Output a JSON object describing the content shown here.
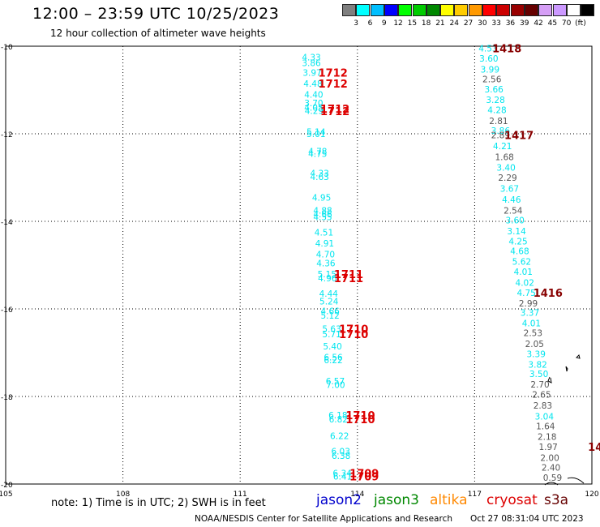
{
  "header": {
    "title": "12:00 – 23:59 UTC 10/25/2023",
    "subtitle": "12 hour collection of altimeter wave heights"
  },
  "legend": {
    "colors": [
      "#7f7f7f",
      "#00ffff",
      "#00bfff",
      "#0000ff",
      "#00ff00",
      "#00cc00",
      "#008800",
      "#ffff00",
      "#ffcc00",
      "#ff9900",
      "#ff0000",
      "#cc0000",
      "#990000",
      "#660000",
      "#d59ef5",
      "#cc99ff",
      "#ffffff",
      "#000000"
    ],
    "labels": [
      "3",
      "6",
      "9",
      "12",
      "15",
      "18",
      "21",
      "24",
      "27",
      "30",
      "33",
      "36",
      "39",
      "42",
      "45",
      "70",
      "(ft)"
    ]
  },
  "map": {
    "lon_ticks": [
      "105",
      "108",
      "111",
      "114",
      "117",
      "120"
    ],
    "lat_ticks": [
      "-10",
      "-12",
      "-14",
      "-16",
      "-18",
      "-20"
    ],
    "track1": [
      {
        "v": "4.33",
        "lat": -10.25,
        "lon": 112.58,
        "c": "#00e5ee"
      },
      {
        "v": "3.86",
        "lat": -10.38,
        "lon": 112.58,
        "c": "#00e5ee"
      },
      {
        "v": "3.97",
        "lat": -10.6,
        "lon": 112.6,
        "c": "#00e5ee"
      },
      {
        "v": "4.48",
        "lat": -10.85,
        "lon": 112.62,
        "c": "#00e5ee"
      },
      {
        "v": "4.40",
        "lat": -11.1,
        "lon": 112.64,
        "c": "#00e5ee"
      },
      {
        "v": "3.70",
        "lat": -11.3,
        "lon": 112.64,
        "c": "#00e5ee"
      },
      {
        "v": "4.05",
        "lat": -11.4,
        "lon": 112.64,
        "c": "#00e5ee"
      },
      {
        "v": "4.29",
        "lat": -11.47,
        "lon": 112.65,
        "c": "#00e5ee"
      },
      {
        "v": "5.14",
        "lat": -11.95,
        "lon": 112.7,
        "c": "#00e5ee"
      },
      {
        "v": "5.01",
        "lat": -12.0,
        "lon": 112.7,
        "c": "#00e5ee"
      },
      {
        "v": "4.78",
        "lat": -12.4,
        "lon": 112.74,
        "c": "#00e5ee"
      },
      {
        "v": "4.75",
        "lat": -12.45,
        "lon": 112.74,
        "c": "#00e5ee"
      },
      {
        "v": "4.33",
        "lat": -12.9,
        "lon": 112.79,
        "c": "#00e5ee"
      },
      {
        "v": "4.63",
        "lat": -12.98,
        "lon": 112.79,
        "c": "#00e5ee"
      },
      {
        "v": "4.95",
        "lat": -13.45,
        "lon": 112.84,
        "c": "#00e5ee"
      },
      {
        "v": "4.88",
        "lat": -13.75,
        "lon": 112.87,
        "c": "#00e5ee"
      },
      {
        "v": "4.66",
        "lat": -13.83,
        "lon": 112.87,
        "c": "#00e5ee"
      },
      {
        "v": "4.55",
        "lat": -13.9,
        "lon": 112.87,
        "c": "#00e5ee"
      },
      {
        "v": "4.51",
        "lat": -14.25,
        "lon": 112.9,
        "c": "#00e5ee"
      },
      {
        "v": "4.91",
        "lat": -14.5,
        "lon": 112.92,
        "c": "#00e5ee"
      },
      {
        "v": "4.70",
        "lat": -14.75,
        "lon": 112.94,
        "c": "#00e5ee"
      },
      {
        "v": "4.36",
        "lat": -14.95,
        "lon": 112.95,
        "c": "#00e5ee"
      },
      {
        "v": "5.15",
        "lat": -15.2,
        "lon": 112.98,
        "c": "#00e5ee"
      },
      {
        "v": "4.96",
        "lat": -15.3,
        "lon": 112.99,
        "c": "#00e5ee"
      },
      {
        "v": "4.44",
        "lat": -15.65,
        "lon": 113.02,
        "c": "#00e5ee"
      },
      {
        "v": "5.24",
        "lat": -15.82,
        "lon": 113.03,
        "c": "#00e5ee"
      },
      {
        "v": "4.66",
        "lat": -16.05,
        "lon": 113.06,
        "c": "#00e5ee"
      },
      {
        "v": "5.12",
        "lat": -16.15,
        "lon": 113.06,
        "c": "#00e5ee"
      },
      {
        "v": "5.63",
        "lat": -16.45,
        "lon": 113.1,
        "c": "#00e5ee"
      },
      {
        "v": "5.71",
        "lat": -16.57,
        "lon": 113.1,
        "c": "#00e5ee"
      },
      {
        "v": "5.40",
        "lat": -16.85,
        "lon": 113.12,
        "c": "#00e5ee"
      },
      {
        "v": "6.56",
        "lat": -17.1,
        "lon": 113.14,
        "c": "#00e5ee"
      },
      {
        "v": "6.22",
        "lat": -17.17,
        "lon": 113.14,
        "c": "#00e5ee"
      },
      {
        "v": "6.57",
        "lat": -17.65,
        "lon": 113.19,
        "c": "#00e5ee"
      },
      {
        "v": "7.00",
        "lat": -17.73,
        "lon": 113.2,
        "c": "#00e5ee"
      },
      {
        "v": "6.18",
        "lat": -18.43,
        "lon": 113.26,
        "c": "#00e5ee"
      },
      {
        "v": "6.82",
        "lat": -18.52,
        "lon": 113.27,
        "c": "#00e5ee"
      },
      {
        "v": "6.22",
        "lat": -18.9,
        "lon": 113.3,
        "c": "#00e5ee"
      },
      {
        "v": "6.03",
        "lat": -19.25,
        "lon": 113.33,
        "c": "#00e5ee"
      },
      {
        "v": "6.38",
        "lat": -19.35,
        "lon": 113.34,
        "c": "#00e5ee"
      },
      {
        "v": "6.34",
        "lat": -19.75,
        "lon": 113.37,
        "c": "#00e5ee"
      },
      {
        "v": "6.41",
        "lat": -19.82,
        "lon": 113.38,
        "c": "#00e5ee"
      }
    ],
    "track2": [
      {
        "v": "4.53",
        "lat": -10.05,
        "lon": 117.1,
        "c": "#00e5ee"
      },
      {
        "v": "3.60",
        "lat": -10.28,
        "lon": 117.12,
        "c": "#00e5ee"
      },
      {
        "v": "3.99",
        "lat": -10.53,
        "lon": 117.15,
        "c": "#00e5ee"
      },
      {
        "v": "2.56",
        "lat": -10.75,
        "lon": 117.2,
        "c": "#555555"
      },
      {
        "v": "3.66",
        "lat": -10.98,
        "lon": 117.25,
        "c": "#00e5ee"
      },
      {
        "v": "3.28",
        "lat": -11.22,
        "lon": 117.29,
        "c": "#00e5ee"
      },
      {
        "v": "4.28",
        "lat": -11.45,
        "lon": 117.33,
        "c": "#00e5ee"
      },
      {
        "v": "2.81",
        "lat": -11.7,
        "lon": 117.37,
        "c": "#555555"
      },
      {
        "v": "3.86",
        "lat": -11.93,
        "lon": 117.42,
        "c": "#00e5ee"
      },
      {
        "v": "2.89",
        "lat": -12.03,
        "lon": 117.42,
        "c": "#555555"
      },
      {
        "v": "4.21",
        "lat": -12.28,
        "lon": 117.47,
        "c": "#00e5ee"
      },
      {
        "v": "1.68",
        "lat": -12.53,
        "lon": 117.52,
        "c": "#555555"
      },
      {
        "v": "3.40",
        "lat": -12.77,
        "lon": 117.56,
        "c": "#00e5ee"
      },
      {
        "v": "2.29",
        "lat": -13.0,
        "lon": 117.6,
        "c": "#555555"
      },
      {
        "v": "3.67",
        "lat": -13.25,
        "lon": 117.65,
        "c": "#00e5ee"
      },
      {
        "v": "4.46",
        "lat": -13.5,
        "lon": 117.7,
        "c": "#00e5ee"
      },
      {
        "v": "2.54",
        "lat": -13.75,
        "lon": 117.74,
        "c": "#555555"
      },
      {
        "v": "3.60",
        "lat": -13.97,
        "lon": 117.79,
        "c": "#00e5ee"
      },
      {
        "v": "3.14",
        "lat": -14.22,
        "lon": 117.83,
        "c": "#00e5ee"
      },
      {
        "v": "4.25",
        "lat": -14.45,
        "lon": 117.87,
        "c": "#00e5ee"
      },
      {
        "v": "4.68",
        "lat": -14.68,
        "lon": 117.91,
        "c": "#00e5ee"
      },
      {
        "v": "5.62",
        "lat": -14.92,
        "lon": 117.96,
        "c": "#00e5ee"
      },
      {
        "v": "4.01",
        "lat": -15.15,
        "lon": 118.0,
        "c": "#00e5ee"
      },
      {
        "v": "4.02",
        "lat": -15.4,
        "lon": 118.04,
        "c": "#00e5ee"
      },
      {
        "v": "4.75",
        "lat": -15.63,
        "lon": 118.08,
        "c": "#00e5ee"
      },
      {
        "v": "2.99",
        "lat": -15.87,
        "lon": 118.13,
        "c": "#555555"
      },
      {
        "v": "3.37",
        "lat": -16.08,
        "lon": 118.17,
        "c": "#00e5ee"
      },
      {
        "v": "4.01",
        "lat": -16.32,
        "lon": 118.21,
        "c": "#00e5ee"
      },
      {
        "v": "2.53",
        "lat": -16.55,
        "lon": 118.25,
        "c": "#555555"
      },
      {
        "v": "2.05",
        "lat": -16.8,
        "lon": 118.29,
        "c": "#555555"
      },
      {
        "v": "3.39",
        "lat": -17.03,
        "lon": 118.33,
        "c": "#00e5ee"
      },
      {
        "v": "3.82",
        "lat": -17.27,
        "lon": 118.37,
        "c": "#00e5ee"
      },
      {
        "v": "3.50",
        "lat": -17.48,
        "lon": 118.4,
        "c": "#00e5ee"
      },
      {
        "v": "2.70",
        "lat": -17.72,
        "lon": 118.43,
        "c": "#555555"
      },
      {
        "v": "2.65",
        "lat": -17.95,
        "lon": 118.47,
        "c": "#555555"
      },
      {
        "v": "2.83",
        "lat": -18.2,
        "lon": 118.5,
        "c": "#555555"
      },
      {
        "v": "3.04",
        "lat": -18.45,
        "lon": 118.54,
        "c": "#00e5ee"
      },
      {
        "v": "1.64",
        "lat": -18.68,
        "lon": 118.57,
        "c": "#555555"
      },
      {
        "v": "2.18",
        "lat": -18.92,
        "lon": 118.61,
        "c": "#555555"
      },
      {
        "v": "1.97",
        "lat": -19.15,
        "lon": 118.64,
        "c": "#555555"
      },
      {
        "v": "2.00",
        "lat": -19.4,
        "lon": 118.68,
        "c": "#555555"
      },
      {
        "v": "2.40",
        "lat": -19.62,
        "lon": 118.71,
        "c": "#555555"
      },
      {
        "v": "0.59",
        "lat": -19.85,
        "lon": 118.75,
        "c": "#555555"
      }
    ],
    "time_labels": [
      {
        "t": "1712",
        "lat": -10.6,
        "lon": 113.0,
        "c": "#dd0000"
      },
      {
        "t": "1712",
        "lat": -10.85,
        "lon": 113.0,
        "c": "#dd0000"
      },
      {
        "t": "1712",
        "lat": -11.43,
        "lon": 113.05,
        "c": "#dd0000"
      },
      {
        "t": "1712",
        "lat": -11.48,
        "lon": 113.05,
        "c": "#dd0000"
      },
      {
        "t": "1711",
        "lat": -15.2,
        "lon": 113.4,
        "c": "#dd0000"
      },
      {
        "t": "1711",
        "lat": -15.3,
        "lon": 113.4,
        "c": "#dd0000"
      },
      {
        "t": "1710",
        "lat": -16.45,
        "lon": 113.53,
        "c": "#dd0000"
      },
      {
        "t": "1710",
        "lat": -16.57,
        "lon": 113.53,
        "c": "#dd0000"
      },
      {
        "t": "1710",
        "lat": -18.43,
        "lon": 113.7,
        "c": "#dd0000"
      },
      {
        "t": "1710",
        "lat": -18.52,
        "lon": 113.7,
        "c": "#dd0000"
      },
      {
        "t": "1709",
        "lat": -19.75,
        "lon": 113.8,
        "c": "#dd0000"
      },
      {
        "t": "1709",
        "lat": -19.82,
        "lon": 113.8,
        "c": "#dd0000"
      },
      {
        "t": "1418",
        "lat": -10.05,
        "lon": 117.45,
        "c": "#880000"
      },
      {
        "t": "1417",
        "lat": -12.03,
        "lon": 117.76,
        "c": "#880000"
      },
      {
        "t": "1416",
        "lat": -15.63,
        "lon": 118.5,
        "c": "#880000"
      },
      {
        "t": "14",
        "lat": -19.15,
        "lon": 119.9,
        "c": "#880000"
      }
    ]
  },
  "footer": {
    "note": "note: 1) Time is in UTC; 2) SWH is in feet",
    "satellites": [
      {
        "name": "jason2",
        "color": "#0000cc"
      },
      {
        "name": "jason3",
        "color": "#008800"
      },
      {
        "name": "altika",
        "color": "#ff8800"
      },
      {
        "name": "cryosat",
        "color": "#dd0000"
      },
      {
        "name": "s3a",
        "color": "#660000"
      }
    ],
    "credit": "NOAA/NESDIS Center for Satellite Applications and Research",
    "timestamp": "Oct 27 08:31:04 UTC 2023"
  }
}
